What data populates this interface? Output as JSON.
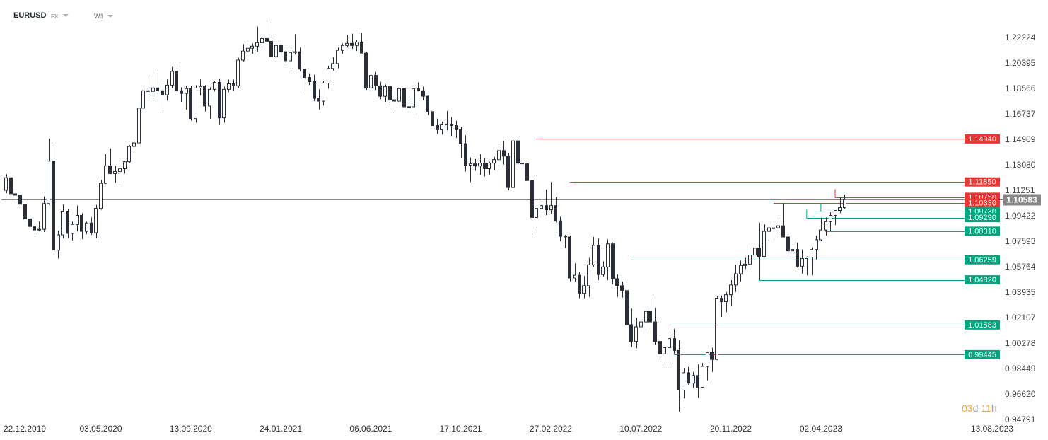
{
  "toolbar": {
    "symbol": "EURUSD",
    "market": "FX",
    "timeframe": "W1"
  },
  "countdown": {
    "days_num": "03",
    "days_unit": "d",
    "hours_num": "11",
    "hours_unit": "h"
  },
  "colors": {
    "resistance": "#e53935",
    "support": "#00a67e",
    "current": "#888888",
    "bear_candle": "#2a2e39",
    "bull_candle": "#ffffff",
    "candle_outline": "#2a2e39"
  },
  "icons": {
    "dropdown": "chevron-down-icon"
  },
  "chart_data": {
    "type": "candlestick",
    "symbol": "EURUSD",
    "timeframe": "W1",
    "y_axis": {
      "position": "right",
      "ylim": [
        0.9379,
        1.2371
      ],
      "ticks": [
        "1.22224",
        "1.20395",
        "1.18566",
        "1.16737",
        "1.14909",
        "1.13080",
        "1.11251",
        "1.09422",
        "1.07593",
        "1.05764",
        "1.03935",
        "1.02107",
        "1.00278",
        "0.98449",
        "0.96620",
        "0.94791"
      ]
    },
    "x_axis": {
      "start": "2019-12-15",
      "ticks": [
        "22.12.2019",
        "03.05.2020",
        "13.09.2020",
        "24.01.2021",
        "06.06.2021",
        "17.10.2021",
        "27.02.2022",
        "10.07.2022",
        "20.11.2022",
        "02.04.2023",
        "13.08.2023"
      ]
    },
    "current_price": {
      "value": 1.10583,
      "label": "1.10583"
    },
    "levels": [
      {
        "label": "1.14940",
        "value": 1.1494,
        "kind": "resistance",
        "from": "2022-02-06"
      },
      {
        "label": "1.11850",
        "value": 1.1185,
        "kind": "resistance",
        "from": "2022-03-27"
      },
      {
        "label": "1.10750",
        "value": 1.1075,
        "kind": "resistance",
        "from": "2023-04-23"
      },
      {
        "label": "1.10330",
        "value": 1.1033,
        "kind": "resistance",
        "from": "2023-01-22"
      },
      {
        "label": "1.09730",
        "value": 1.0973,
        "kind": "support",
        "from": "2023-04-02"
      },
      {
        "label": "1.09290",
        "value": 1.0929,
        "kind": "support",
        "from": "2023-03-12"
      },
      {
        "label": "1.08310",
        "value": 1.0831,
        "kind": "support",
        "from": "2023-04-09"
      },
      {
        "label": "1.06259",
        "value": 1.06259,
        "kind": "support",
        "from": "2022-06-26"
      },
      {
        "label": "1.04820",
        "value": 1.0482,
        "kind": "support",
        "from": "2023-01-01"
      },
      {
        "label": "1.01583",
        "value": 1.01583,
        "kind": "support",
        "from": "2022-08-21"
      },
      {
        "label": "0.99445",
        "value": 0.99445,
        "kind": "support",
        "from": "2022-08-28"
      }
    ],
    "candles": [
      [
        1.1125,
        1.124,
        1.1105,
        1.1215
      ],
      [
        1.1215,
        1.1235,
        1.109,
        1.11
      ],
      [
        1.11,
        1.1135,
        1.1055,
        1.109
      ],
      [
        1.109,
        1.111,
        1.099,
        1.1025
      ],
      [
        1.1025,
        1.105,
        1.0905,
        1.092
      ],
      [
        1.092,
        1.0935,
        1.085,
        1.0865
      ],
      [
        1.0865,
        1.087,
        1.079,
        1.084
      ],
      [
        1.084,
        1.09,
        1.083,
        1.0845
      ],
      [
        1.0845,
        1.108,
        1.0825,
        1.103
      ],
      [
        1.103,
        1.1495,
        1.102,
        1.1335
      ],
      [
        1.1335,
        1.145,
        1.0695,
        1.0695
      ],
      [
        1.0695,
        1.0835,
        1.0635,
        1.0805
      ],
      [
        1.0805,
        1.1025,
        1.078,
        1.0975
      ],
      [
        1.0975,
        1.099,
        1.078,
        1.0815
      ],
      [
        1.0815,
        1.09,
        1.0765,
        1.088
      ],
      [
        1.088,
        1.1015,
        1.083,
        1.0945
      ],
      [
        1.0945,
        1.096,
        1.0775,
        1.083
      ],
      [
        1.083,
        1.09,
        1.081,
        1.089
      ],
      [
        1.089,
        1.093,
        1.0805,
        1.082
      ],
      [
        1.082,
        1.102,
        1.078,
        1.0995
      ],
      [
        1.0995,
        1.12,
        1.0985,
        1.1175
      ],
      [
        1.1175,
        1.1385,
        1.117,
        1.13
      ],
      [
        1.13,
        1.1425,
        1.124,
        1.1245
      ],
      [
        1.1245,
        1.13,
        1.118,
        1.126
      ],
      [
        1.126,
        1.13,
        1.118,
        1.128
      ],
      [
        1.128,
        1.1335,
        1.1245,
        1.133
      ],
      [
        1.133,
        1.145,
        1.132,
        1.144
      ],
      [
        1.144,
        1.1495,
        1.141,
        1.1465
      ],
      [
        1.1465,
        1.176,
        1.144,
        1.1715
      ],
      [
        1.1715,
        1.187,
        1.17,
        1.184
      ],
      [
        1.184,
        1.1945,
        1.178,
        1.1835
      ],
      [
        1.1835,
        1.187,
        1.178,
        1.186
      ],
      [
        1.186,
        1.197,
        1.18,
        1.184
      ],
      [
        1.184,
        1.1895,
        1.169,
        1.181
      ],
      [
        1.181,
        1.192,
        1.177,
        1.188
      ],
      [
        1.188,
        1.201,
        1.186,
        1.198
      ],
      [
        1.198,
        1.2015,
        1.18,
        1.184
      ],
      [
        1.184,
        1.1865,
        1.176,
        1.182
      ],
      [
        1.182,
        1.1875,
        1.1705,
        1.1855
      ],
      [
        1.1855,
        1.1875,
        1.1625,
        1.164
      ],
      [
        1.164,
        1.188,
        1.161,
        1.186
      ],
      [
        1.186,
        1.192,
        1.1805,
        1.187
      ],
      [
        1.187,
        1.188,
        1.169,
        1.173
      ],
      [
        1.173,
        1.1865,
        1.164,
        1.185
      ],
      [
        1.185,
        1.191,
        1.1835,
        1.19
      ],
      [
        1.19,
        1.1925,
        1.16,
        1.1645
      ],
      [
        1.1645,
        1.187,
        1.161,
        1.185
      ],
      [
        1.185,
        1.192,
        1.183,
        1.189
      ],
      [
        1.189,
        1.192,
        1.184,
        1.1875
      ],
      [
        1.1875,
        1.2075,
        1.186,
        1.206
      ],
      [
        1.206,
        1.2175,
        1.205,
        1.2125
      ],
      [
        1.2125,
        1.218,
        1.211,
        1.2145
      ],
      [
        1.2145,
        1.218,
        1.2105,
        1.216
      ],
      [
        1.216,
        1.23,
        1.212,
        1.2185
      ],
      [
        1.2185,
        1.2245,
        1.215,
        1.2215
      ],
      [
        1.2215,
        1.2345,
        1.217,
        1.2195
      ],
      [
        1.2195,
        1.222,
        1.2055,
        1.2085
      ],
      [
        1.2085,
        1.218,
        1.2075,
        1.2165
      ],
      [
        1.2165,
        1.2185,
        1.211,
        1.212
      ],
      [
        1.212,
        1.215,
        1.202,
        1.2055
      ],
      [
        1.2055,
        1.213,
        1.2,
        1.2115
      ],
      [
        1.2115,
        1.2245,
        1.21,
        1.212
      ],
      [
        1.212,
        1.215,
        1.198,
        1.1995
      ],
      [
        1.1995,
        1.2015,
        1.1835,
        1.1935
      ],
      [
        1.1935,
        1.1965,
        1.188,
        1.1905
      ],
      [
        1.1905,
        1.1955,
        1.1765,
        1.1785
      ],
      [
        1.1785,
        1.185,
        1.1705,
        1.1765
      ],
      [
        1.1765,
        1.191,
        1.1735,
        1.1895
      ],
      [
        1.1895,
        1.202,
        1.1855,
        1.2
      ],
      [
        1.2,
        1.208,
        1.1985,
        1.2035
      ],
      [
        1.2035,
        1.215,
        1.2,
        1.213
      ],
      [
        1.213,
        1.218,
        1.2105,
        1.2165
      ],
      [
        1.2165,
        1.224,
        1.215,
        1.218
      ],
      [
        1.218,
        1.225,
        1.214,
        1.2165
      ],
      [
        1.2165,
        1.2205,
        1.2125,
        1.219
      ],
      [
        1.219,
        1.2255,
        1.2115,
        1.211
      ],
      [
        1.211,
        1.212,
        1.1845,
        1.186
      ],
      [
        1.186,
        1.196,
        1.184,
        1.195
      ],
      [
        1.195,
        1.1975,
        1.1845,
        1.1875
      ],
      [
        1.1875,
        1.1905,
        1.178,
        1.18
      ],
      [
        1.18,
        1.1885,
        1.176,
        1.187
      ],
      [
        1.187,
        1.189,
        1.1755,
        1.1775
      ],
      [
        1.1775,
        1.18,
        1.171,
        1.1765
      ],
      [
        1.1765,
        1.1865,
        1.175,
        1.1855
      ],
      [
        1.1855,
        1.1865,
        1.17,
        1.1725
      ],
      [
        1.1725,
        1.1795,
        1.169,
        1.1725
      ],
      [
        1.1725,
        1.188,
        1.1665,
        1.1855
      ],
      [
        1.1855,
        1.19,
        1.1835,
        1.184
      ],
      [
        1.184,
        1.187,
        1.177,
        1.18
      ],
      [
        1.18,
        1.1805,
        1.1665,
        1.169
      ],
      [
        1.169,
        1.17,
        1.156,
        1.159
      ],
      [
        1.159,
        1.164,
        1.153,
        1.156
      ],
      [
        1.156,
        1.162,
        1.1525,
        1.16
      ],
      [
        1.16,
        1.1695,
        1.1555,
        1.16
      ],
      [
        1.16,
        1.165,
        1.1515,
        1.159
      ],
      [
        1.159,
        1.1625,
        1.15,
        1.156
      ],
      [
        1.156,
        1.158,
        1.1355,
        1.146
      ],
      [
        1.146,
        1.152,
        1.126,
        1.1305
      ],
      [
        1.1305,
        1.136,
        1.1185,
        1.1315
      ],
      [
        1.1315,
        1.135,
        1.1265,
        1.13
      ],
      [
        1.13,
        1.1385,
        1.1235,
        1.132
      ],
      [
        1.132,
        1.1355,
        1.1225,
        1.128
      ],
      [
        1.128,
        1.133,
        1.1235,
        1.132
      ],
      [
        1.132,
        1.1365,
        1.127,
        1.1345
      ],
      [
        1.1345,
        1.144,
        1.1295,
        1.141
      ],
      [
        1.141,
        1.148,
        1.131,
        1.137
      ],
      [
        1.137,
        1.1395,
        1.1125,
        1.1145
      ],
      [
        1.1145,
        1.1495,
        1.114,
        1.148
      ],
      [
        1.148,
        1.1495,
        1.131,
        1.132
      ],
      [
        1.132,
        1.1345,
        1.1275,
        1.1315
      ],
      [
        1.1315,
        1.133,
        1.111,
        1.1195
      ],
      [
        1.1195,
        1.1215,
        1.0805,
        1.093
      ],
      [
        1.093,
        1.101,
        1.085,
        1.0995
      ],
      [
        1.0995,
        1.105,
        1.098,
        1.1015
      ],
      [
        1.1015,
        1.113,
        1.0945,
        1.0985
      ],
      [
        1.0985,
        1.1185,
        1.0955,
        1.1015
      ],
      [
        1.1015,
        1.1075,
        1.0895,
        1.0905
      ],
      [
        1.0905,
        1.0935,
        1.076,
        1.0795
      ],
      [
        1.0795,
        1.0805,
        1.071,
        1.079
      ],
      [
        1.079,
        1.08,
        1.047,
        1.0495
      ],
      [
        1.0495,
        1.06,
        1.047,
        1.0515
      ],
      [
        1.0515,
        1.054,
        1.035,
        1.0385
      ],
      [
        1.0385,
        1.051,
        1.035,
        1.044
      ],
      [
        1.044,
        1.064,
        1.036,
        1.059
      ],
      [
        1.059,
        1.079,
        1.0575,
        1.073
      ],
      [
        1.073,
        1.078,
        1.048,
        1.052
      ],
      [
        1.052,
        1.0615,
        1.0505,
        1.0575
      ],
      [
        1.0575,
        1.0773,
        1.048,
        1.074
      ],
      [
        1.074,
        1.075,
        1.045,
        1.049
      ],
      [
        1.049,
        1.052,
        1.036,
        1.044
      ],
      [
        1.044,
        1.047,
        1.0355,
        1.0405
      ],
      [
        1.0405,
        1.0445,
        1.0135,
        1.016
      ],
      [
        1.016,
        1.0275,
        1.0,
        1.004
      ],
      [
        1.004,
        1.021,
        0.999,
        1.0145
      ],
      [
        1.0145,
        1.02,
        1.0095,
        1.018
      ],
      [
        1.018,
        1.0295,
        1.012,
        1.0255
      ],
      [
        1.0255,
        1.037,
        1.0175,
        1.018
      ],
      [
        1.018,
        1.028,
        1.0015,
        1.004
      ],
      [
        1.004,
        1.009,
        0.99,
        0.995
      ],
      [
        0.995,
        1.0,
        0.9865,
        0.9995
      ],
      [
        0.9995,
        1.011,
        0.9865,
        1.006
      ],
      [
        1.006,
        1.013,
        0.995,
        0.9975
      ],
      [
        0.9975,
        1.005,
        0.9535,
        0.969
      ],
      [
        0.969,
        0.985,
        0.963,
        0.9815
      ],
      [
        0.9815,
        0.9855,
        0.973,
        0.974
      ],
      [
        0.974,
        0.982,
        0.9705,
        0.9795
      ],
      [
        0.9795,
        0.9875,
        0.9635,
        0.971
      ],
      [
        0.971,
        0.9885,
        0.9705,
        0.986
      ],
      [
        0.986,
        0.9955,
        0.976,
        0.996
      ],
      [
        0.996,
        0.9995,
        0.982,
        0.991
      ],
      [
        0.991,
        1.0365,
        0.9905,
        1.035
      ],
      [
        1.035,
        1.037,
        1.0215,
        1.0325
      ],
      [
        1.0325,
        1.0395,
        1.025,
        1.0375
      ],
      [
        1.0375,
        1.048,
        1.0295,
        1.0445
      ],
      [
        1.0445,
        1.059,
        1.0395,
        1.0525
      ],
      [
        1.0525,
        1.062,
        1.047,
        1.0585
      ],
      [
        1.0585,
        1.064,
        1.056,
        1.0595
      ],
      [
        1.0595,
        1.0736,
        1.055,
        1.066
      ],
      [
        1.066,
        1.0745,
        1.064,
        1.071
      ],
      [
        1.071,
        1.089,
        1.048,
        1.065
      ],
      [
        1.065,
        1.088,
        1.0645,
        1.083
      ],
      [
        1.083,
        1.087,
        1.076,
        1.0855
      ],
      [
        1.0855,
        1.09,
        1.077,
        1.0855
      ],
      [
        1.0855,
        1.093,
        1.082,
        1.087
      ],
      [
        1.087,
        1.1033,
        1.08,
        1.079
      ],
      [
        1.079,
        1.08,
        1.066,
        1.069
      ],
      [
        1.069,
        1.074,
        1.0655,
        1.07
      ],
      [
        1.07,
        1.075,
        1.057,
        1.058
      ],
      [
        1.058,
        1.07,
        1.0525,
        1.0635
      ],
      [
        1.0635,
        1.065,
        1.0515,
        1.0645
      ],
      [
        1.0645,
        1.0715,
        1.0515,
        1.07
      ],
      [
        1.07,
        1.08,
        1.0625,
        1.077
      ],
      [
        1.077,
        1.0929,
        1.076,
        1.084
      ],
      [
        1.084,
        1.093,
        1.08,
        1.09
      ],
      [
        1.09,
        1.0973,
        1.0831,
        1.0945
      ],
      [
        1.0945,
        1.0973,
        1.0875,
        1.098
      ],
      [
        1.098,
        1.1075,
        1.096,
        1.1
      ],
      [
        1.1,
        1.1095,
        1.099,
        1.1058
      ]
    ]
  }
}
